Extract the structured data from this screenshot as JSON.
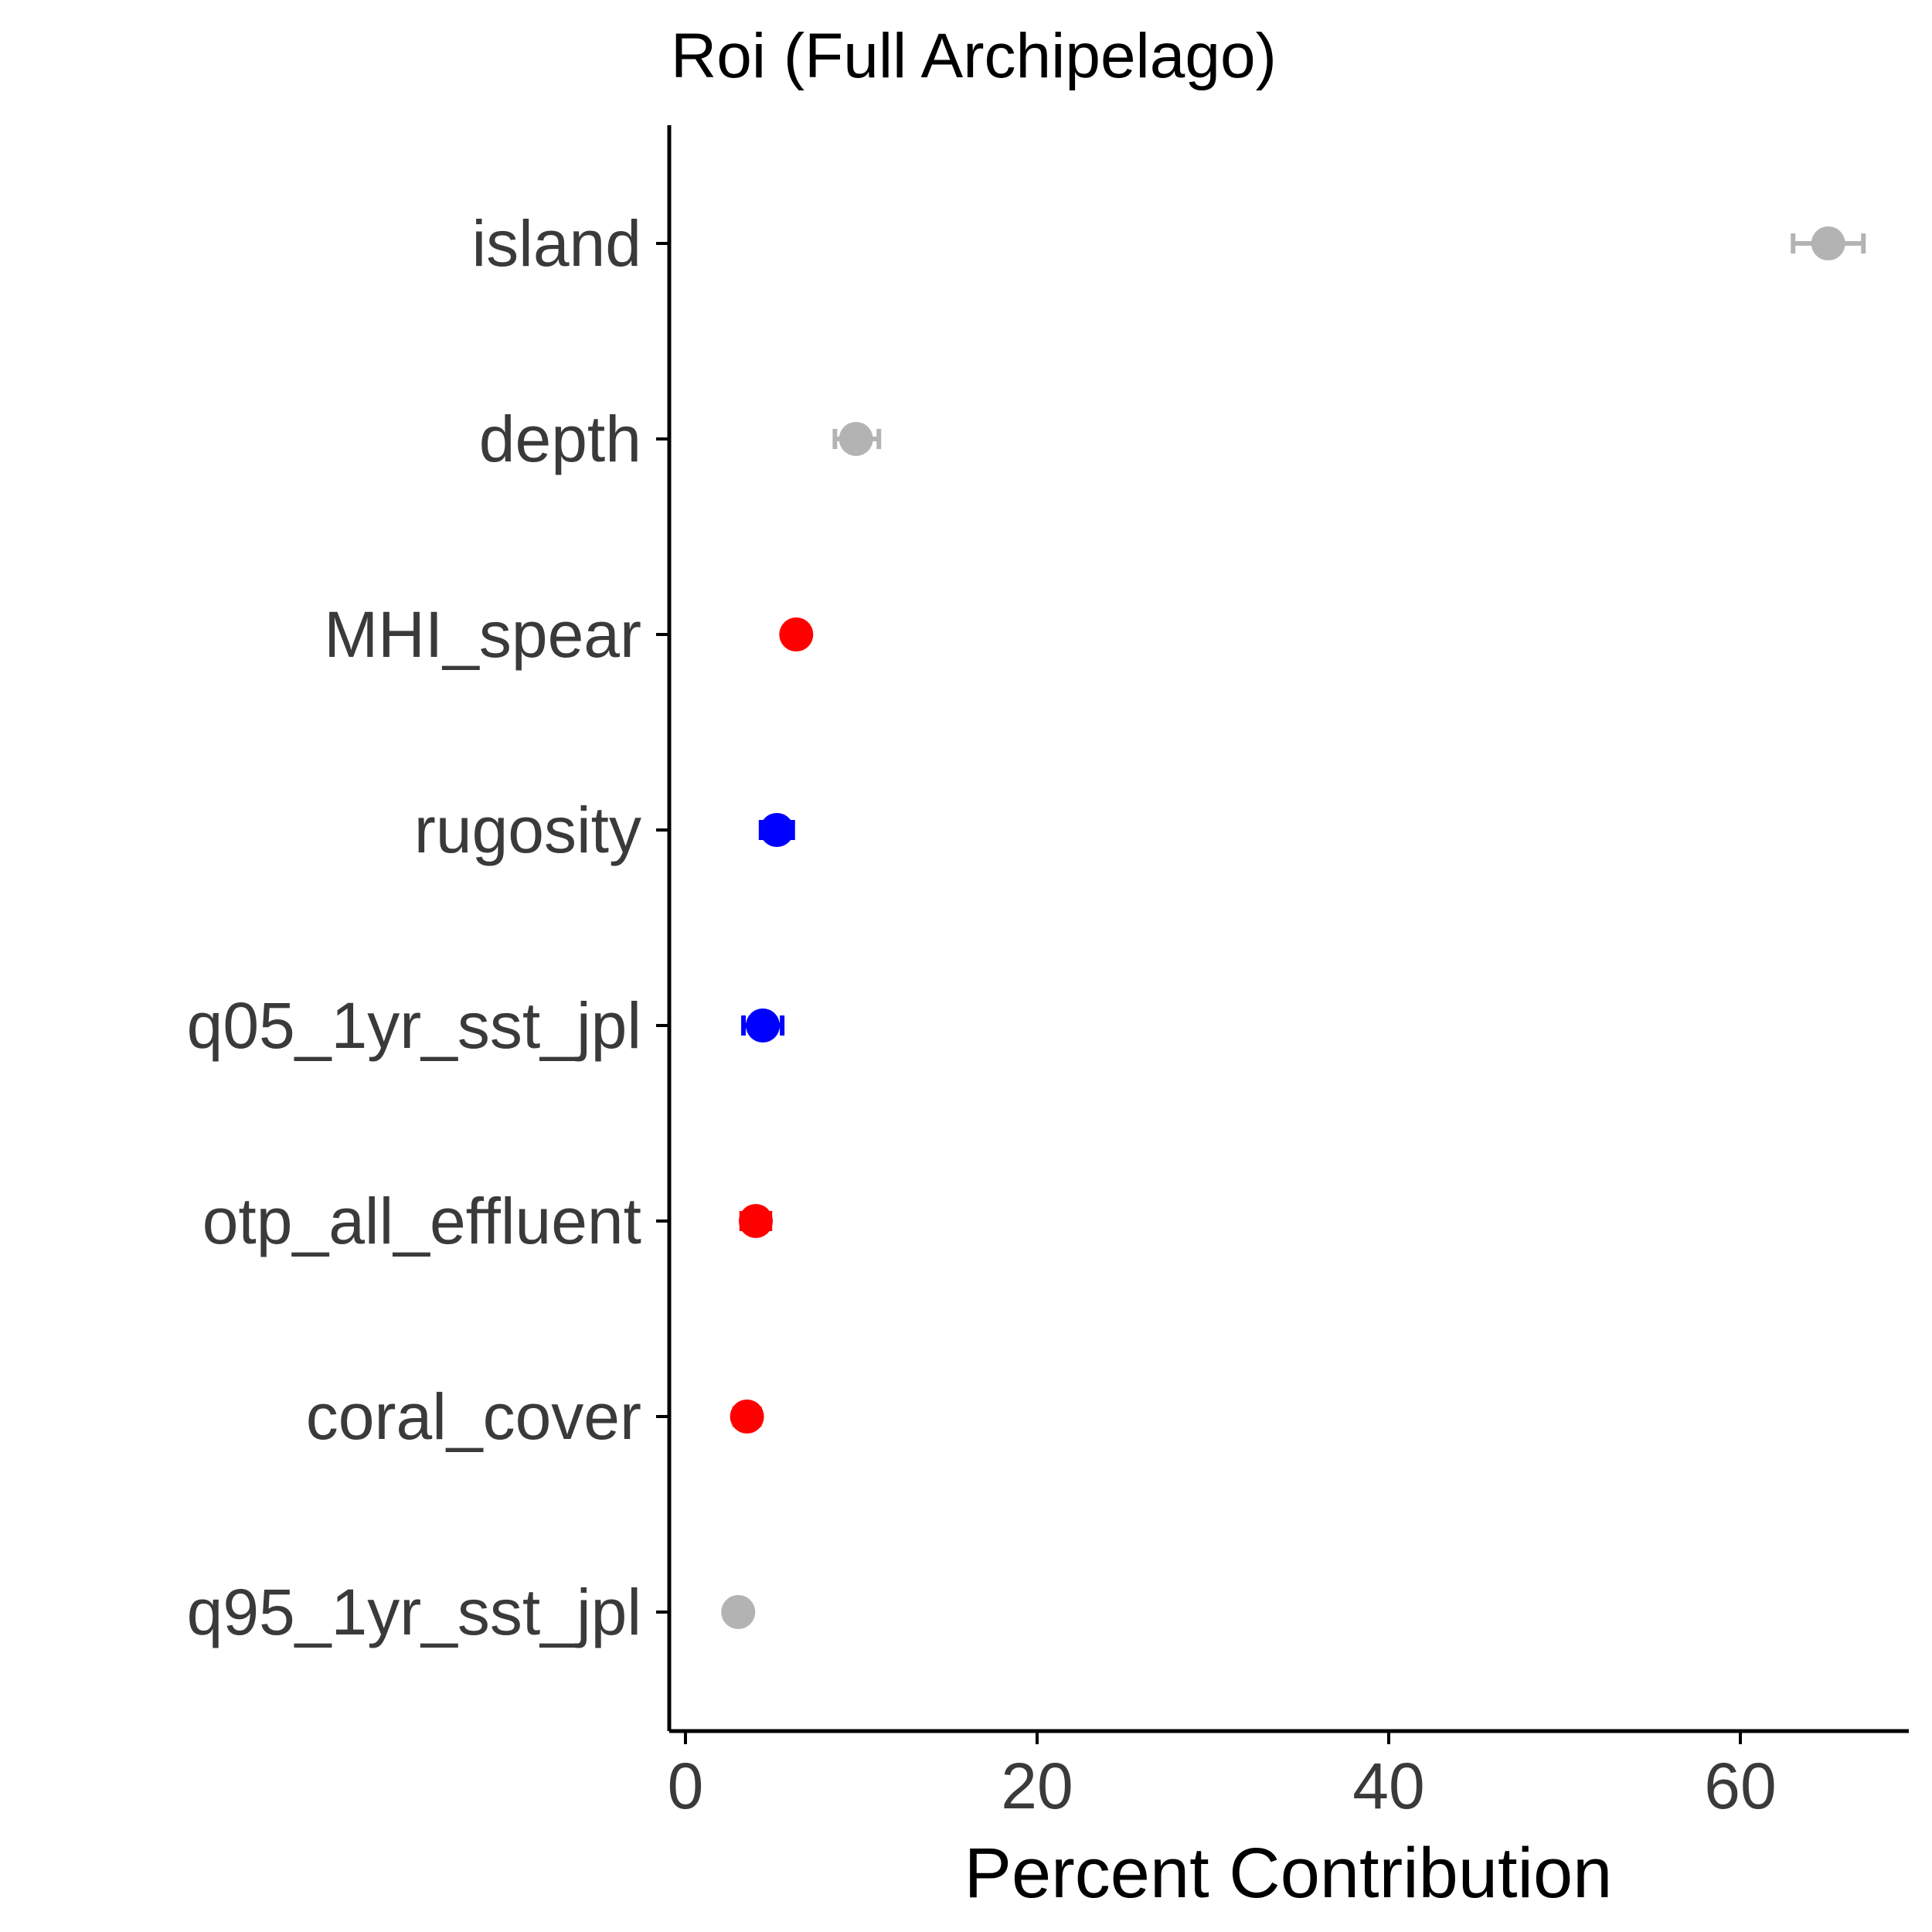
{
  "chart_data": {
    "type": "scatter",
    "title": "Roi (Full Archipelago)",
    "xlabel": "Percent Contribution",
    "ylabel": "",
    "xlim": [
      -1,
      70
    ],
    "xticks": [
      0,
      20,
      40,
      60
    ],
    "grid": false,
    "legend": "none",
    "categories": [
      "island",
      "depth",
      "MHI_spear",
      "rugosity",
      "q05_1yr_sst_jpl",
      "otp_all_effluent",
      "coral_cover",
      "q95_1yr_sst_jpl"
    ],
    "values": [
      65.0,
      9.7,
      6.3,
      5.2,
      4.4,
      4.0,
      3.5,
      3.0
    ],
    "error_low": [
      63.0,
      8.5,
      6.0,
      4.3,
      3.3,
      3.2,
      2.8,
      2.8
    ],
    "error_high": [
      67.0,
      11.0,
      6.6,
      6.1,
      5.5,
      4.8,
      4.2,
      3.2
    ],
    "colors": [
      "#b3b3b3",
      "#b3b3b3",
      "#ff0000",
      "#0000ff",
      "#0000ff",
      "#ff0000",
      "#ff0000",
      "#b3b3b3"
    ]
  }
}
